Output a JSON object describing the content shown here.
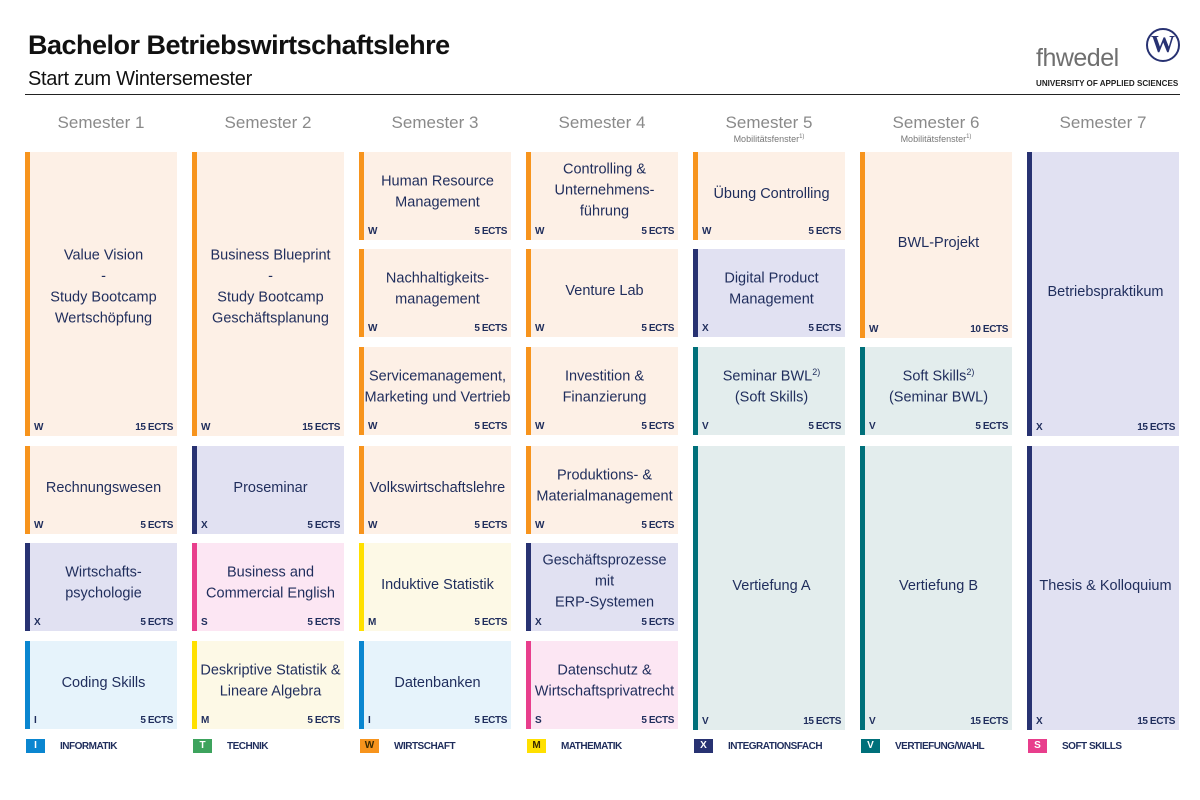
{
  "header": {
    "title": "Bachelor Betriebswirtschaftslehre",
    "subtitle": "Start zum Wintersemester",
    "logo_text": "fhwedel",
    "logo_tagline": "UNIVERSITY OF APPLIED SCIENCES"
  },
  "semesters": [
    {
      "label": "Semester 1"
    },
    {
      "label": "Semester 2"
    },
    {
      "label": "Semester 3"
    },
    {
      "label": "Semester 4"
    },
    {
      "label": "Semester 5",
      "note": "Mobilitätsfenster",
      "note_sup": "1)"
    },
    {
      "label": "Semester 6",
      "note": "Mobilitätsfenster",
      "note_sup": "1)"
    },
    {
      "label": "Semester 7"
    }
  ],
  "categories": {
    "I": {
      "label": "INFORMATIK",
      "color": "#0a86d0",
      "bg": "#e6f3fb"
    },
    "T": {
      "label": "TECHNIK",
      "color": "#3da35d",
      "bg": "#e6f4ea"
    },
    "W": {
      "label": "WIRTSCHAFT",
      "color": "#f7941d",
      "bg": "#fdf0e6"
    },
    "M": {
      "label": "MATHEMATIK",
      "color": "#ffe000",
      "bg": "#fdf9e6"
    },
    "X": {
      "label": "INTEGRATIONSFACH",
      "color": "#283272",
      "bg": "#e1e1f2"
    },
    "V": {
      "label": "VERTIEFUNG/WAHL",
      "color": "#00707a",
      "bg": "#e3eded"
    },
    "S": {
      "label": "SOFT SKILLS",
      "color": "#e83e8c",
      "bg": "#fce6f3"
    }
  },
  "legend_order": [
    "I",
    "T",
    "W",
    "M",
    "X",
    "V",
    "S"
  ],
  "modules": [
    {
      "lines": [
        "Value Vision",
        "-",
        "Study Bootcamp",
        "Wertschöpfung"
      ],
      "code": "W",
      "ects": "15 ECTS"
    },
    {
      "lines": [
        "Rechnungswesen"
      ],
      "code": "W",
      "ects": "5 ECTS"
    },
    {
      "lines": [
        "Wirtschafts-",
        "psychologie"
      ],
      "code": "X",
      "ects": "5 ECTS"
    },
    {
      "lines": [
        "Coding Skills"
      ],
      "code": "I",
      "ects": "5 ECTS"
    },
    {
      "lines": [
        "Business Blueprint",
        "-",
        "Study Bootcamp",
        "Geschäftsplanung"
      ],
      "code": "W",
      "ects": "15 ECTS"
    },
    {
      "lines": [
        "Proseminar"
      ],
      "code": "X",
      "ects": "5 ECTS"
    },
    {
      "lines": [
        "Business and",
        "Commercial English"
      ],
      "code": "S",
      "ects": "5 ECTS"
    },
    {
      "lines": [
        "Deskriptive Statistik &",
        "Lineare Algebra"
      ],
      "code": "M",
      "ects": "5 ECTS"
    },
    {
      "lines": [
        "Human Resource",
        "Management"
      ],
      "code": "W",
      "ects": "5 ECTS"
    },
    {
      "lines": [
        "Nachhaltigkeits-",
        "management"
      ],
      "code": "W",
      "ects": "5 ECTS"
    },
    {
      "lines": [
        "Servicemanagement,",
        "Marketing und Vertrieb"
      ],
      "code": "W",
      "ects": "5 ECTS"
    },
    {
      "lines": [
        "Volkswirtschaftslehre"
      ],
      "code": "W",
      "ects": "5 ECTS"
    },
    {
      "lines": [
        "Induktive Statistik"
      ],
      "code": "M",
      "ects": "5 ECTS"
    },
    {
      "lines": [
        "Datenbanken"
      ],
      "code": "I",
      "ects": "5 ECTS"
    },
    {
      "lines": [
        "Controlling &",
        "Unternehmens-",
        "führung"
      ],
      "code": "W",
      "ects": "5 ECTS"
    },
    {
      "lines": [
        "Venture Lab"
      ],
      "code": "W",
      "ects": "5 ECTS"
    },
    {
      "lines": [
        "Investition &",
        "Finanzierung"
      ],
      "code": "W",
      "ects": "5 ECTS"
    },
    {
      "lines": [
        "Produktions- &",
        "Materialmanagement"
      ],
      "code": "W",
      "ects": "5 ECTS"
    },
    {
      "lines": [
        "Geschäftsprozesse mit",
        "ERP-Systemen"
      ],
      "code": "X",
      "ects": "5 ECTS"
    },
    {
      "lines": [
        "Datenschutz &",
        "Wirtschaftsprivatrecht"
      ],
      "code": "S",
      "ects": "5 ECTS"
    },
    {
      "lines": [
        "Übung Controlling"
      ],
      "code": "W",
      "ects": "5 ECTS"
    },
    {
      "lines": [
        "Digital Product",
        "Management"
      ],
      "code": "X",
      "ects": "5 ECTS"
    },
    {
      "lines": [
        "Seminar BWL",
        "(Soft Skills)"
      ],
      "sup": "2)",
      "code": "V",
      "ects": "5 ECTS"
    },
    {
      "lines": [
        "Vertiefung A"
      ],
      "code": "V",
      "ects": "15 ECTS"
    },
    {
      "lines": [
        "BWL-Projekt"
      ],
      "code": "W",
      "ects": "10 ECTS"
    },
    {
      "lines": [
        "Soft Skills",
        "(Seminar BWL)"
      ],
      "sup": "2)",
      "code": "V",
      "ects": "5 ECTS"
    },
    {
      "lines": [
        "Vertiefung B"
      ],
      "code": "V",
      "ects": "15 ECTS"
    },
    {
      "lines": [
        "Betriebspraktikum"
      ],
      "code": "X",
      "ects": "15 ECTS"
    },
    {
      "lines": [
        "Thesis & Kolloquium"
      ],
      "code": "X",
      "ects": "15 ECTS"
    }
  ]
}
